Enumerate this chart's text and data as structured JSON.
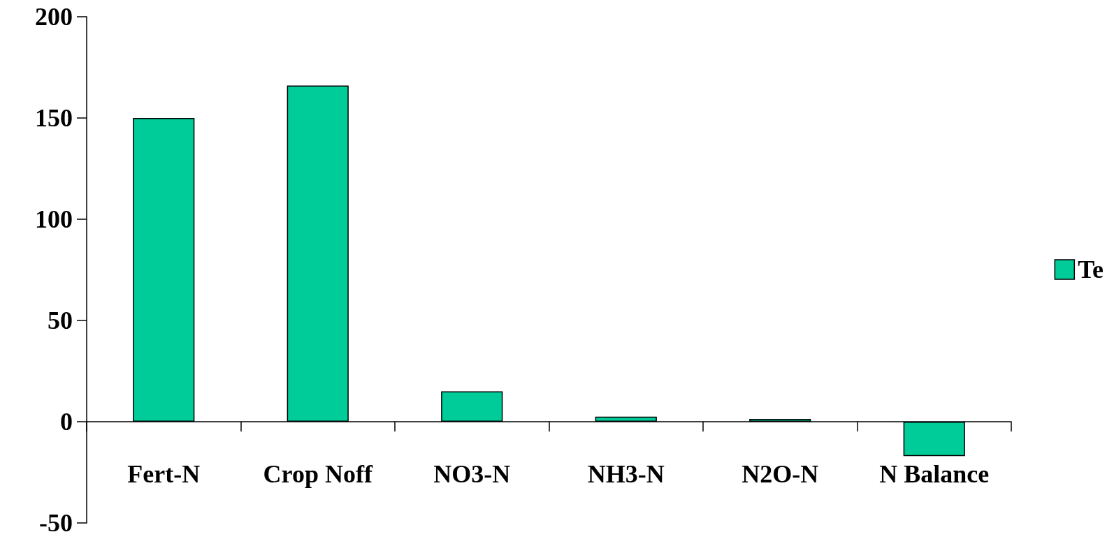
{
  "chart_data": {
    "type": "bar",
    "categories": [
      "Fert-N",
      "Crop Noff",
      "NO3-N",
      "NH3-N",
      "N2O-N",
      "N Balance"
    ],
    "series": [
      {
        "name": "Te",
        "color": "#00cc99",
        "values": [
          150,
          166,
          15,
          2.5,
          1.4,
          -17
        ]
      }
    ],
    "ylim": [
      -50,
      200
    ],
    "yticks": [
      -50,
      0,
      50,
      100,
      150,
      200
    ],
    "legend": "right"
  }
}
